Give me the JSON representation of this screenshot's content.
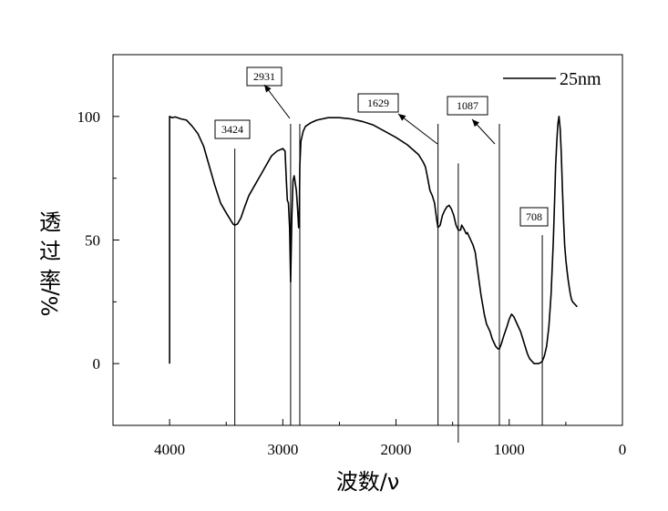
{
  "chart_data": {
    "type": "line",
    "xlabel": "波数/ν",
    "ylabel": "透过率 %/",
    "xlim": [
      4500,
      0
    ],
    "ylim": [
      -25,
      125
    ],
    "x_ticks": [
      4000,
      3000,
      2000,
      1000,
      0
    ],
    "y_ticks": [
      0,
      50,
      100
    ],
    "grid": false,
    "legend_position": "top-right",
    "series": [
      {
        "name": "25nm",
        "color": "#000000",
        "x": [
          4000,
          4000,
          3980,
          3950,
          3900,
          3850,
          3800,
          3750,
          3700,
          3650,
          3600,
          3550,
          3500,
          3460,
          3440,
          3424,
          3400,
          3370,
          3340,
          3300,
          3250,
          3200,
          3150,
          3100,
          3050,
          3000,
          2980,
          2970,
          2960,
          2950,
          2940,
          2931,
          2920,
          2910,
          2900,
          2890,
          2880,
          2870,
          2860,
          2855,
          2850,
          2840,
          2820,
          2800,
          2750,
          2700,
          2600,
          2500,
          2400,
          2300,
          2200,
          2100,
          2000,
          1900,
          1800,
          1780,
          1760,
          1740,
          1720,
          1700,
          1680,
          1660,
          1640,
          1629,
          1610,
          1590,
          1570,
          1550,
          1530,
          1510,
          1490,
          1470,
          1450,
          1430,
          1420,
          1400,
          1380,
          1370,
          1350,
          1320,
          1300,
          1280,
          1250,
          1220,
          1200,
          1170,
          1150,
          1120,
          1100,
          1087,
          1070,
          1050,
          1020,
          1000,
          980,
          960,
          940,
          920,
          900,
          880,
          860,
          840,
          820,
          800,
          780,
          760,
          740,
          720,
          708,
          690,
          670,
          650,
          630,
          610,
          600,
          590,
          580,
          570,
          560,
          550,
          540,
          530,
          520,
          510,
          500,
          490,
          480,
          470,
          460,
          450,
          440,
          430,
          420,
          410,
          400
        ],
        "y": [
          0,
          100,
          99.5,
          99.8,
          99,
          98.5,
          96,
          93,
          88,
          80,
          72,
          65,
          61,
          58,
          56.5,
          56,
          56.5,
          59,
          63,
          68,
          72,
          76,
          80,
          84,
          86,
          87,
          86,
          75,
          66,
          65,
          55,
          33,
          60,
          74,
          76,
          73,
          70,
          63,
          55,
          56,
          80,
          90,
          94,
          96,
          97.5,
          98.5,
          99.5,
          99.5,
          99,
          98,
          96.5,
          94,
          91.5,
          88.5,
          84.5,
          83,
          81.5,
          79.5,
          75,
          70,
          68,
          65,
          58,
          55,
          56,
          60,
          62,
          63.5,
          64,
          62.5,
          60,
          56,
          54,
          54,
          56,
          54.5,
          52.5,
          53,
          51,
          48,
          45,
          38,
          28,
          20,
          16,
          13,
          10,
          7,
          6,
          6,
          8,
          11,
          15,
          18,
          20,
          19,
          17,
          15,
          13,
          10,
          7,
          4,
          2,
          1,
          0,
          0,
          0,
          0.5,
          1,
          3,
          7,
          15,
          28,
          50,
          65,
          80,
          90,
          97,
          100,
          95,
          85,
          70,
          58,
          48,
          42,
          38,
          34,
          31,
          28,
          26,
          25,
          24.5,
          24,
          23.5,
          23
        ]
      }
    ],
    "annotations": [
      {
        "label": "3424",
        "x": 3424
      },
      {
        "label": "2931",
        "x": 2931
      },
      {
        "label": "1629",
        "x": 1629
      },
      {
        "label": "1087",
        "x": 1087
      },
      {
        "label": "708",
        "x": 708
      }
    ],
    "reference_lines": [
      3424,
      2931,
      2850,
      1629,
      1450,
      1087,
      708
    ]
  }
}
